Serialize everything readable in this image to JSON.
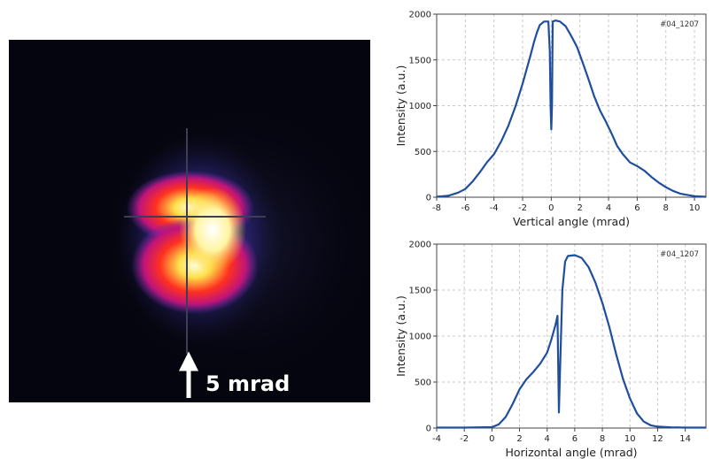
{
  "beam_image": {
    "scale_label": "5 mrad"
  },
  "chart_data": [
    {
      "type": "line",
      "id": "vertical",
      "tag": "#04_1207",
      "xlabel": "Vertical angle (mrad)",
      "ylabel": "Intensity (a.u.)",
      "xlim": [
        -8,
        10.8
      ],
      "ylim": [
        0,
        2000
      ],
      "xticks": [
        -8,
        -6,
        -4,
        -2,
        0,
        2,
        4,
        6,
        8,
        10
      ],
      "yticks": [
        0,
        500,
        1000,
        1500,
        2000
      ],
      "grid": true,
      "line_color": "#1f4e9c",
      "x": [
        -8,
        -7.2,
        -6.5,
        -6,
        -5.5,
        -5,
        -4.5,
        -4,
        -3.5,
        -3,
        -2.5,
        -2,
        -1.5,
        -1.2,
        -1,
        -0.8,
        -0.5,
        -0.2,
        -0.1,
        -0.05,
        0,
        0.05,
        0.1,
        0.3,
        0.6,
        1,
        1.4,
        1.8,
        2.2,
        2.6,
        3,
        3.4,
        3.8,
        4.2,
        4.6,
        5,
        5.5,
        6,
        6.5,
        7,
        7.5,
        8,
        8.5,
        9,
        9.5,
        10,
        10.8
      ],
      "y": [
        5,
        15,
        50,
        90,
        170,
        270,
        380,
        470,
        610,
        780,
        990,
        1240,
        1520,
        1700,
        1800,
        1880,
        1920,
        1920,
        1600,
        1000,
        740,
        1000,
        1920,
        1930,
        1920,
        1870,
        1760,
        1640,
        1470,
        1290,
        1100,
        950,
        830,
        700,
        560,
        470,
        380,
        340,
        290,
        220,
        160,
        110,
        70,
        40,
        25,
        12,
        5
      ]
    },
    {
      "type": "line",
      "id": "horizontal",
      "tag": "#04_1207",
      "xlabel": "Horizontal angle (mrad)",
      "ylabel": "Intensity (a.u.)",
      "xlim": [
        -4,
        15.5
      ],
      "ylim": [
        0,
        2000
      ],
      "xticks": [
        -4,
        -2,
        0,
        2,
        4,
        6,
        8,
        10,
        12,
        14
      ],
      "yticks": [
        0,
        500,
        1000,
        1500,
        2000
      ],
      "grid": true,
      "line_color": "#1f4e9c",
      "x": [
        -4,
        -2,
        0,
        0.5,
        1,
        1.5,
        2,
        2.5,
        3,
        3.5,
        4,
        4.3,
        4.6,
        4.75,
        4.8,
        4.85,
        4.95,
        5.1,
        5.3,
        5.5,
        6,
        6.5,
        7,
        7.5,
        8,
        8.5,
        9,
        9.5,
        10,
        10.5,
        11,
        11.5,
        12,
        13,
        14,
        15.5
      ],
      "y": [
        5,
        5,
        10,
        40,
        120,
        260,
        420,
        530,
        610,
        700,
        820,
        960,
        1120,
        1220,
        700,
        170,
        700,
        1500,
        1810,
        1870,
        1880,
        1850,
        1750,
        1580,
        1360,
        1100,
        800,
        530,
        320,
        160,
        70,
        30,
        15,
        8,
        5,
        5
      ]
    }
  ]
}
